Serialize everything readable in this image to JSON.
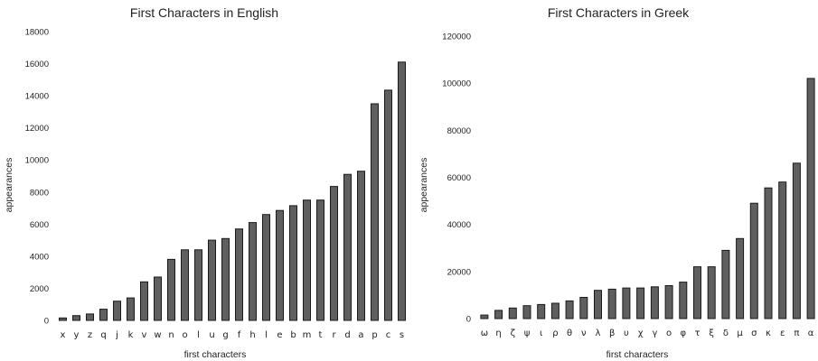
{
  "chart_data": [
    {
      "type": "bar",
      "title": "First Characters in English",
      "xlabel": "first characters",
      "ylabel": "appearances",
      "ylim": [
        0,
        18000
      ],
      "yticks": [
        0,
        2000,
        4000,
        6000,
        8000,
        10000,
        12000,
        14000,
        16000,
        18000
      ],
      "categories": [
        "x",
        "y",
        "z",
        "q",
        "j",
        "k",
        "v",
        "w",
        "n",
        "o",
        "l",
        "u",
        "g",
        "f",
        "h",
        "l",
        "e",
        "b",
        "m",
        "t",
        "r",
        "d",
        "a",
        "p",
        "c",
        "s"
      ],
      "values": [
        150,
        300,
        400,
        700,
        1200,
        1400,
        2400,
        2700,
        3800,
        4400,
        4400,
        5000,
        5100,
        5700,
        6100,
        6600,
        6850,
        7150,
        7500,
        7500,
        8350,
        9100,
        9300,
        13500,
        14350,
        16100
      ],
      "grid": false
    },
    {
      "type": "bar",
      "title": "First Characters in Greek",
      "xlabel": "first characters",
      "ylabel": "appearances",
      "ylim": [
        0,
        120000
      ],
      "yticks": [
        0,
        20000,
        40000,
        60000,
        80000,
        100000,
        120000
      ],
      "categories": [
        "ω",
        "η",
        "ζ",
        "ψ",
        "ι",
        "ρ",
        "θ",
        "ν",
        "λ",
        "β",
        "υ",
        "χ",
        "γ",
        "ο",
        "φ",
        "τ",
        "ξ",
        "δ",
        "μ",
        "σ",
        "κ",
        "ε",
        "π",
        "α"
      ],
      "values": [
        1500,
        3500,
        4500,
        5500,
        6000,
        6500,
        7500,
        9000,
        12000,
        12500,
        13000,
        13000,
        13500,
        14000,
        15500,
        22000,
        22000,
        29000,
        34000,
        49000,
        55500,
        58000,
        66000,
        102000
      ],
      "grid": false
    }
  ]
}
